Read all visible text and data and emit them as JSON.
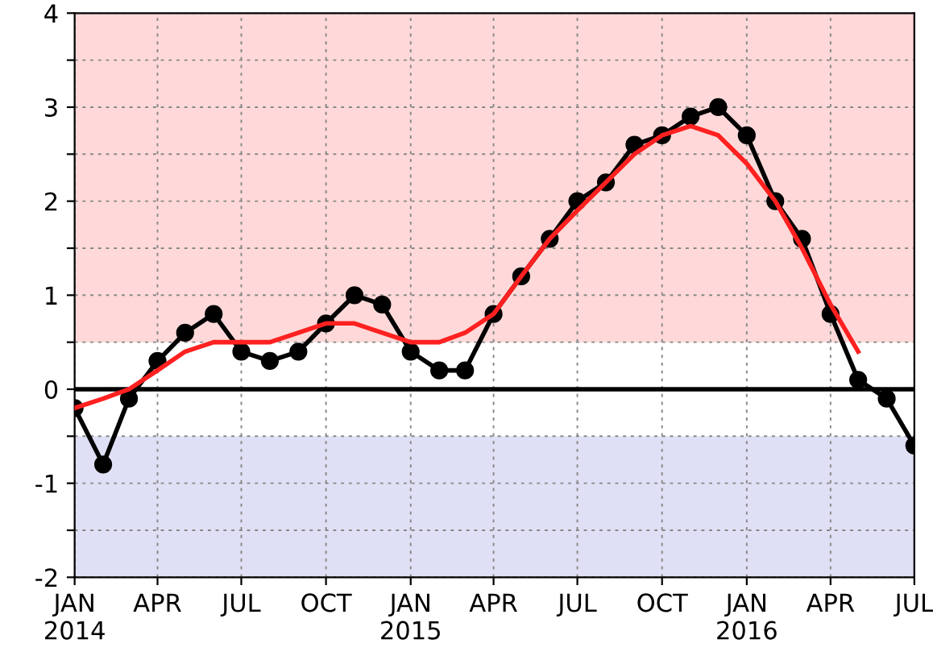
{
  "chart_data": {
    "type": "line",
    "x": [
      "2014-01",
      "2014-02",
      "2014-03",
      "2014-04",
      "2014-05",
      "2014-06",
      "2014-07",
      "2014-08",
      "2014-09",
      "2014-10",
      "2014-11",
      "2014-12",
      "2015-01",
      "2015-02",
      "2015-03",
      "2015-04",
      "2015-05",
      "2015-06",
      "2015-07",
      "2015-08",
      "2015-09",
      "2015-10",
      "2015-11",
      "2015-12",
      "2016-01",
      "2016-02",
      "2016-03",
      "2016-04",
      "2016-05",
      "2016-06",
      "2016-07"
    ],
    "series": [
      {
        "color": "#000000",
        "marker": "circle",
        "values": [
          -0.2,
          -0.8,
          -0.1,
          0.3,
          0.6,
          0.8,
          0.4,
          0.3,
          0.4,
          0.7,
          1.0,
          0.9,
          0.4,
          0.2,
          0.2,
          0.8,
          1.2,
          1.6,
          2.0,
          2.2,
          2.6,
          2.7,
          2.9,
          3.0,
          2.7,
          2.0,
          1.6,
          0.8,
          0.1,
          -0.1,
          -0.6
        ]
      },
      {
        "color": "#ff2020",
        "marker": "none",
        "values": [
          -0.2,
          -0.1,
          0.0,
          0.2,
          0.4,
          0.5,
          0.5,
          0.5,
          0.6,
          0.7,
          0.7,
          0.6,
          0.5,
          0.5,
          0.6,
          0.8,
          1.2,
          1.6,
          1.9,
          2.2,
          2.5,
          2.7,
          2.8,
          2.7,
          2.4,
          2.0,
          1.5,
          0.9,
          0.4,
          null,
          null
        ]
      }
    ],
    "xlim": [
      "2014-01",
      "2016-07"
    ],
    "xticks": [
      {
        "value": "2014-01",
        "label": "JAN\n2014"
      },
      {
        "value": "2014-04",
        "label": "APR"
      },
      {
        "value": "2014-07",
        "label": "JUL"
      },
      {
        "value": "2014-10",
        "label": "OCT"
      },
      {
        "value": "2015-01",
        "label": "JAN\n2015"
      },
      {
        "value": "2015-04",
        "label": "APR"
      },
      {
        "value": "2015-07",
        "label": "JUL"
      },
      {
        "value": "2015-10",
        "label": "OCT"
      },
      {
        "value": "2016-01",
        "label": "JAN\n2016"
      },
      {
        "value": "2016-04",
        "label": "APR"
      },
      {
        "value": "2016-07",
        "label": "JUL"
      }
    ],
    "ylim": [
      -2,
      4
    ],
    "yticks": [
      -2,
      {
        "value": -1.5,
        "label": null
      },
      -1,
      {
        "value": -0.5,
        "label": null
      },
      0,
      {
        "value": 0.5,
        "label": null
      },
      1,
      {
        "value": 1.5,
        "label": null
      },
      2,
      {
        "value": 2.5,
        "label": null
      },
      3,
      {
        "value": 3.5,
        "label": null
      },
      4
    ],
    "grid": true,
    "line_style": "solid",
    "ref_lines": [
      {
        "axis": "y",
        "value": 0,
        "color": "#000000",
        "line_style": "solid"
      }
    ],
    "bands": [
      {
        "axis": "y",
        "from": 0.5,
        "to": 4,
        "color": "#ffd9d9"
      },
      {
        "axis": "y",
        "from": -2,
        "to": -0.5,
        "color": "#dfe0f5"
      }
    ],
    "legend": false
  }
}
